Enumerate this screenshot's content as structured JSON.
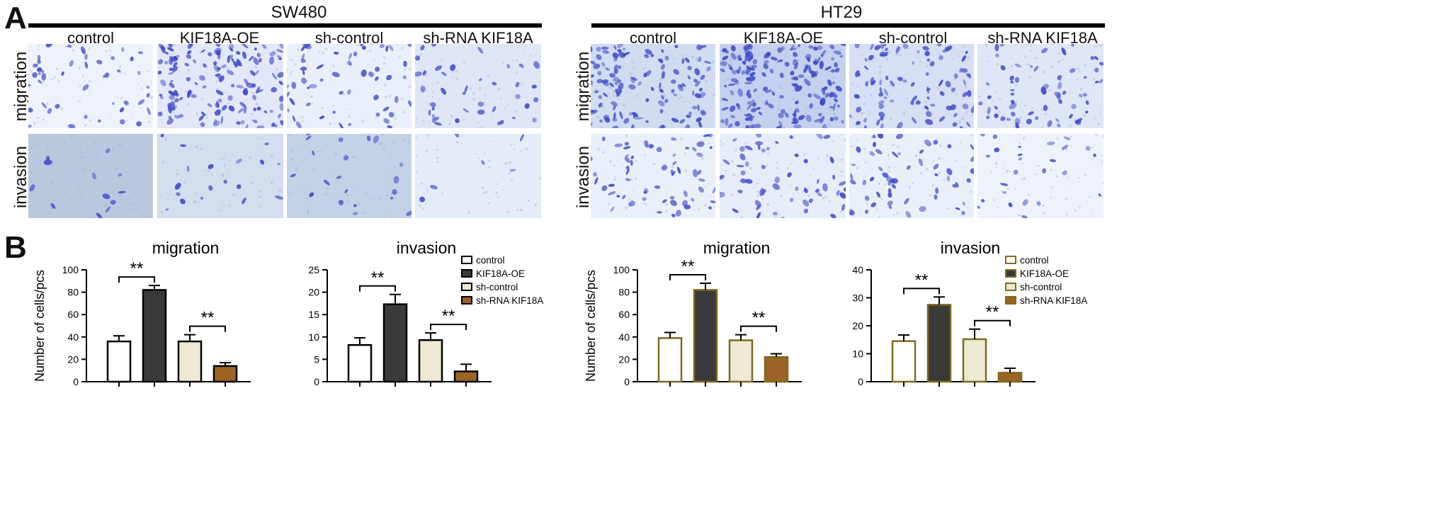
{
  "panel_a": {
    "letter": "A",
    "rows": [
      "migration",
      "invasion"
    ],
    "groups": [
      {
        "title": "SW480",
        "columns": [
          "control",
          "KIF18A-OE",
          "sh-control",
          "sh-RNA KIF18A"
        ],
        "migration_density": [
          45,
          140,
          55,
          40
        ],
        "invasion_density": [
          12,
          18,
          20,
          6
        ],
        "migration_bg": [
          "#eef2fb",
          "#e2e8f8",
          "#eaf0fb",
          "#dfe7f6"
        ],
        "invasion_bg": [
          "#b9c8de",
          "#d3deef",
          "#c5d1e6",
          "#e3ecf7"
        ]
      },
      {
        "title": "HT29",
        "columns": [
          "control",
          "KIF18A-OE",
          "sh-control",
          "sh-RNA KIF18A"
        ],
        "migration_density": [
          120,
          170,
          90,
          60
        ],
        "invasion_density": [
          60,
          55,
          55,
          25
        ],
        "migration_bg": [
          "#d2dcf1",
          "#c4d0ee",
          "#d6dff3",
          "#dfe6f6"
        ],
        "invasion_bg": [
          "#eaf0fa",
          "#e6edf9",
          "#eaf0fa",
          "#eef3fb"
        ]
      }
    ],
    "stain_color": "#3c46c8"
  },
  "panel_b": {
    "letter": "B"
  },
  "chart_data": [
    {
      "type": "bar",
      "title": "migration",
      "ylabel": "Number of cells/pcs",
      "ylim": [
        0,
        100
      ],
      "yticks": [
        0,
        20,
        40,
        60,
        80,
        100
      ],
      "categories": [
        "control",
        "KIF18A-OE",
        "sh-control",
        "sh-RNA KIF18A"
      ],
      "values": [
        36,
        82,
        36,
        14
      ],
      "errors": [
        5,
        4,
        6,
        3
      ],
      "significance": [
        {
          "from": 0,
          "to": 1,
          "label": "**"
        },
        {
          "from": 2,
          "to": 3,
          "label": "**"
        }
      ],
      "colors": [
        "#ffffff",
        "#3a3a3a",
        "#efe9d3",
        "#9c6324"
      ],
      "edge_color": "#000000"
    },
    {
      "type": "bar",
      "title": "invasion",
      "ylabel": "",
      "ylim": [
        0,
        25
      ],
      "yticks": [
        0,
        5,
        10,
        15,
        20,
        25
      ],
      "categories": [
        "control",
        "KIF18A-OE",
        "sh-control",
        "sh-RNA KIF18A"
      ],
      "values": [
        8.2,
        17.3,
        9.3,
        2.3
      ],
      "errors": [
        1.6,
        2.2,
        1.6,
        1.6
      ],
      "significance": [
        {
          "from": 0,
          "to": 1,
          "label": "**"
        },
        {
          "from": 2,
          "to": 3,
          "label": "**"
        }
      ],
      "colors": [
        "#ffffff",
        "#3a3a3a",
        "#efe9d3",
        "#9c6324"
      ],
      "edge_color": "#000000",
      "legend": [
        "control",
        "KIF18A-OE",
        "sh-control",
        "sh-RNA KIF18A"
      ],
      "legend_position": "right"
    },
    {
      "type": "bar",
      "title": "migration",
      "ylabel": "Number of cells/pcs",
      "ylim": [
        0,
        100
      ],
      "yticks": [
        0,
        20,
        40,
        60,
        80,
        100
      ],
      "categories": [
        "control",
        "KIF18A-OE",
        "sh-control",
        "sh-RNA KIF18A"
      ],
      "values": [
        39,
        82,
        37,
        22
      ],
      "errors": [
        5,
        6,
        5,
        3
      ],
      "significance": [
        {
          "from": 0,
          "to": 1,
          "label": "**"
        },
        {
          "from": 2,
          "to": 3,
          "label": "**"
        }
      ],
      "colors": [
        "#ffffff",
        "#3a3a3a",
        "#efe9d3",
        "#9c6324"
      ],
      "edge_color": "#7f6a1e"
    },
    {
      "type": "bar",
      "title": "invasion",
      "ylabel": "",
      "ylim": [
        0,
        40
      ],
      "yticks": [
        0,
        10,
        20,
        30,
        40
      ],
      "categories": [
        "control",
        "KIF18A-OE",
        "sh-control",
        "sh-RNA KIF18A"
      ],
      "values": [
        14.5,
        27.5,
        15.2,
        3.2
      ],
      "errors": [
        2.2,
        2.8,
        3.6,
        1.6
      ],
      "significance": [
        {
          "from": 0,
          "to": 1,
          "label": "**"
        },
        {
          "from": 2,
          "to": 3,
          "label": "**"
        }
      ],
      "colors": [
        "#ffffff",
        "#3a3a3a",
        "#efe9d3",
        "#9c6324"
      ],
      "edge_color": "#7f6a1e",
      "legend": [
        "control",
        "KIF18A-OE",
        "sh-control",
        "sh-RNA KIF18A"
      ],
      "legend_position": "right"
    }
  ]
}
